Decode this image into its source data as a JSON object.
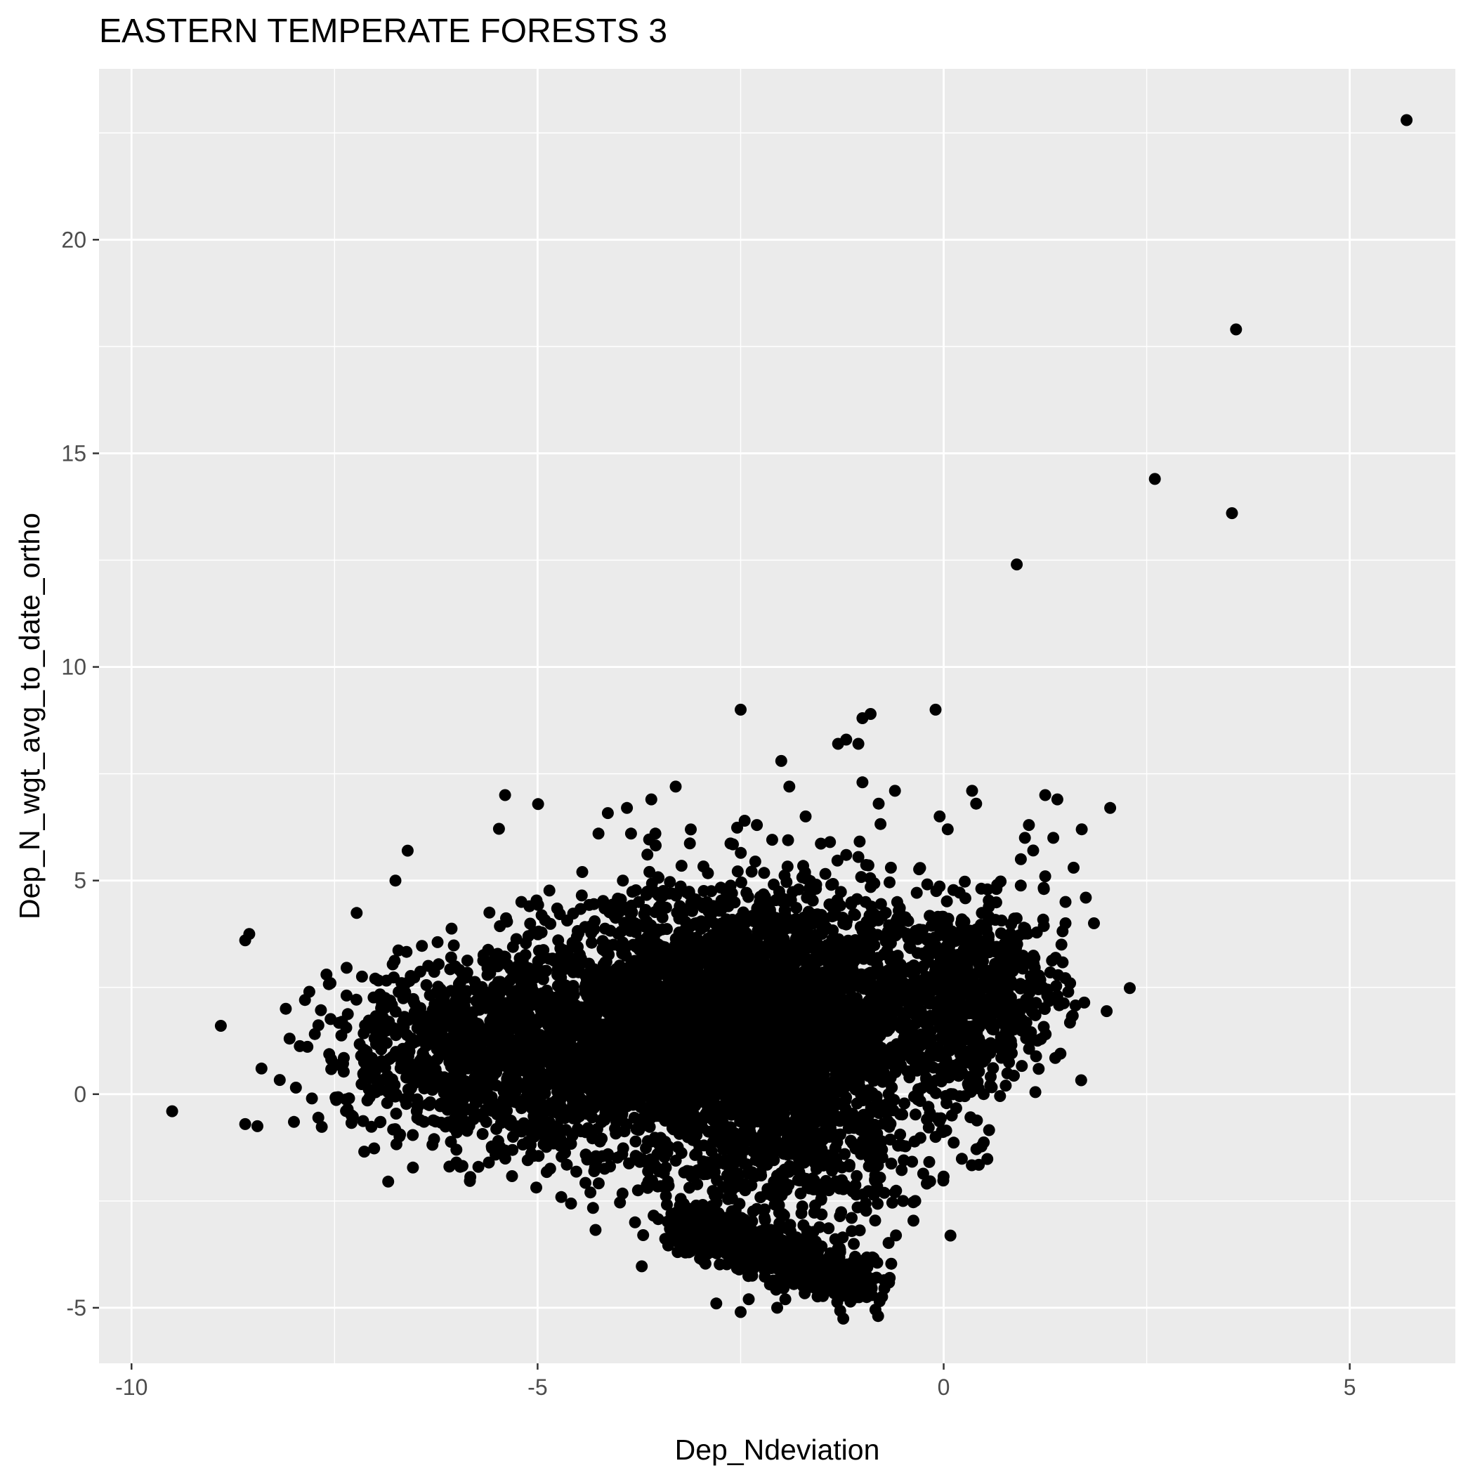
{
  "chart_data": {
    "type": "scatter",
    "title": "EASTERN TEMPERATE FORESTS 3",
    "xlabel": "Dep_Ndeviation",
    "ylabel": "Dep_N_wgt_avg_to_date_ortho",
    "xlim": [
      -10.4,
      6.3
    ],
    "ylim": [
      -6.3,
      24.0
    ],
    "x_ticks": [
      -10,
      -5,
      0,
      5
    ],
    "x_tick_labels": [
      "-10",
      "-5",
      "0",
      "5"
    ],
    "y_ticks": [
      -5,
      0,
      5,
      10,
      15,
      20
    ],
    "y_tick_labels": [
      "-5",
      "0",
      "5",
      "10",
      "15",
      "20"
    ],
    "grid": true,
    "background": "#ebebeb",
    "grid_color": "#ffffff",
    "point_color": "#000000",
    "points": [
      [
        5.7,
        22.8
      ],
      [
        3.6,
        17.9
      ],
      [
        2.6,
        14.4
      ],
      [
        3.55,
        13.6
      ],
      [
        0.9,
        12.4
      ],
      [
        -2.5,
        9.0
      ],
      [
        -0.1,
        9.0
      ],
      [
        -0.9,
        8.9
      ],
      [
        -1.0,
        8.8
      ],
      [
        -1.05,
        8.2
      ],
      [
        -1.2,
        8.3
      ],
      [
        -1.3,
        8.2
      ],
      [
        -2.0,
        7.8
      ],
      [
        -1.0,
        7.3
      ],
      [
        -1.9,
        7.2
      ],
      [
        -3.3,
        7.2
      ],
      [
        -5.4,
        7.0
      ],
      [
        -0.6,
        7.1
      ],
      [
        -0.8,
        6.8
      ],
      [
        0.35,
        7.1
      ],
      [
        0.4,
        6.8
      ],
      [
        1.25,
        7.0
      ],
      [
        1.4,
        6.9
      ],
      [
        2.05,
        6.7
      ],
      [
        -3.9,
        6.7
      ],
      [
        -3.6,
        6.9
      ],
      [
        -3.55,
        6.1
      ],
      [
        -3.85,
        6.1
      ],
      [
        -4.25,
        6.1
      ],
      [
        -2.45,
        6.4
      ],
      [
        -2.3,
        6.3
      ],
      [
        -1.7,
        6.5
      ],
      [
        -1.4,
        5.9
      ],
      [
        -0.05,
        6.5
      ],
      [
        0.05,
        6.2
      ],
      [
        1.05,
        6.3
      ],
      [
        1.7,
        6.2
      ],
      [
        1.0,
        6.0
      ],
      [
        1.35,
        6.0
      ],
      [
        -6.6,
        5.7
      ],
      [
        -6.75,
        5.0
      ],
      [
        -4.45,
        5.2
      ],
      [
        -3.95,
        5.0
      ],
      [
        -1.2,
        5.6
      ],
      [
        -0.65,
        5.3
      ],
      [
        0.95,
        5.5
      ],
      [
        1.25,
        5.1
      ],
      [
        1.6,
        5.3
      ],
      [
        1.5,
        4.5
      ],
      [
        1.5,
        4.0
      ],
      [
        1.85,
        4.0
      ],
      [
        1.75,
        4.6
      ],
      [
        1.45,
        3.5
      ],
      [
        1.4,
        2.3
      ],
      [
        -8.55,
        3.75
      ],
      [
        -8.6,
        3.6
      ],
      [
        -7.6,
        2.8
      ],
      [
        -7.55,
        2.6
      ],
      [
        -8.1,
        2.0
      ],
      [
        -8.9,
        1.6
      ],
      [
        -8.4,
        0.6
      ],
      [
        -9.5,
        -0.4
      ],
      [
        -8.6,
        -0.7
      ],
      [
        -8.45,
        -0.75
      ],
      [
        -8.0,
        -0.65
      ],
      [
        -7.7,
        -0.55
      ],
      [
        -5.1,
        4.4
      ],
      [
        -5.2,
        4.5
      ],
      [
        -0.1,
        -1.0
      ],
      [
        0.1,
        -0.5
      ],
      [
        -0.6,
        -2.3
      ],
      [
        -0.5,
        -2.5
      ],
      [
        -0.35,
        -2.5
      ],
      [
        -2.8,
        -4.9
      ],
      [
        -2.5,
        -5.1
      ],
      [
        -2.4,
        -4.8
      ],
      [
        -2.05,
        -5.0
      ],
      [
        -1.95,
        -4.8
      ],
      [
        -3.8,
        -3.0
      ],
      [
        -3.7,
        -3.3
      ],
      [
        -4.35,
        -2.3
      ],
      [
        -5.6,
        -1.6
      ],
      [
        -6.0,
        -1.6
      ],
      [
        -6.0,
        -1.3
      ]
    ],
    "dense_regions": [
      {
        "cx": -3.0,
        "cy": 1.4,
        "sx": 1.25,
        "sy": 1.35,
        "n": 2600
      },
      {
        "cx": -4.6,
        "cy": 0.9,
        "sx": 1.0,
        "sy": 1.1,
        "n": 900
      },
      {
        "cx": -6.0,
        "cy": 1.0,
        "sx": 0.85,
        "sy": 1.0,
        "n": 500
      },
      {
        "cx": -1.2,
        "cy": 1.5,
        "sx": 0.9,
        "sy": 1.3,
        "n": 800
      },
      {
        "cx": 0.5,
        "cy": 2.4,
        "sx": 0.5,
        "sy": 1.0,
        "n": 500
      },
      {
        "cx": -2.4,
        "cy": 3.6,
        "sx": 1.1,
        "sy": 1.0,
        "n": 500
      },
      {
        "cx": -2.0,
        "cy": -1.5,
        "sx": 0.9,
        "sy": 0.8,
        "n": 400
      }
    ],
    "tail_band": {
      "x_from": -3.3,
      "x_to": -0.9,
      "y_from": -3.0,
      "y_to": -4.45,
      "spread": 0.3,
      "n": 700
    }
  }
}
